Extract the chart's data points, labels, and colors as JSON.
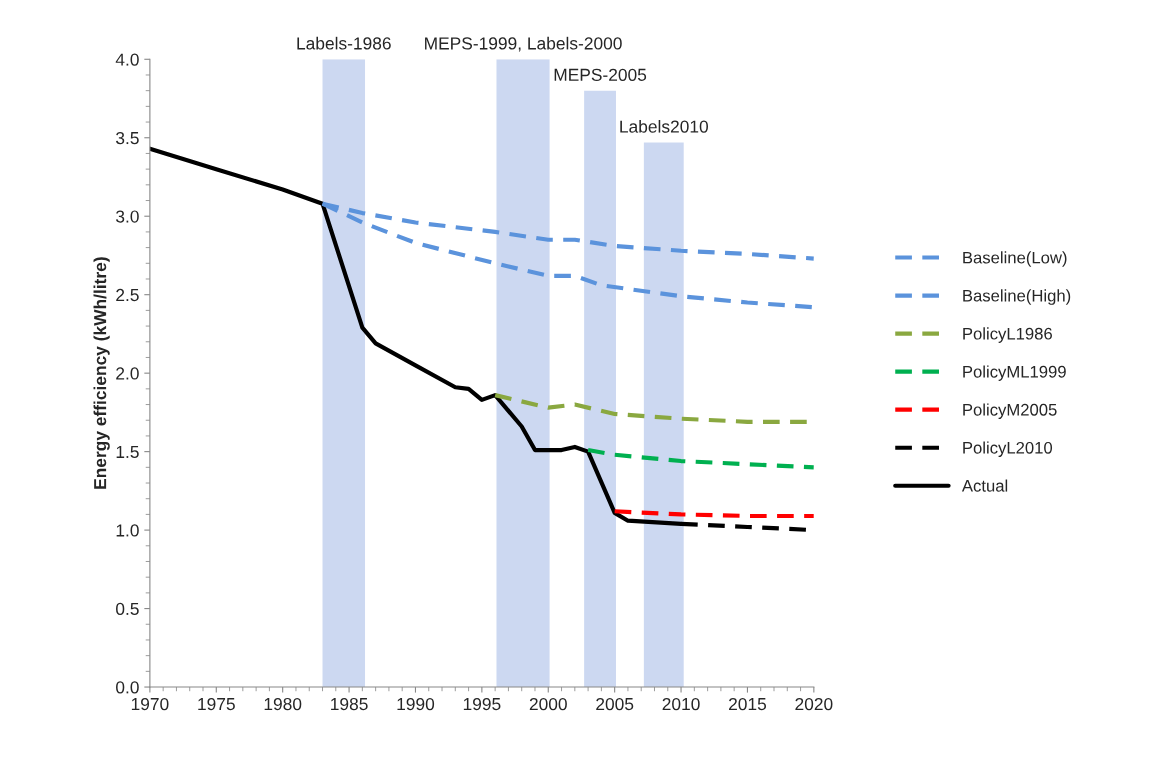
{
  "chart_data": {
    "type": "line",
    "ylabel": "Energy efficiency (kWh/litre)",
    "xlim": [
      1970,
      2020
    ],
    "xticks": [
      1970,
      1975,
      1980,
      1985,
      1990,
      1995,
      2000,
      2005,
      2010,
      2015,
      2020
    ],
    "ylim": [
      0,
      4
    ],
    "yticks": [
      {
        "value": 0,
        "label": "0.0"
      },
      {
        "value": 0.5,
        "label": "0.5"
      },
      {
        "value": 1,
        "label": "1.0"
      },
      {
        "value": 1.5,
        "label": "1.5"
      },
      {
        "value": 2,
        "label": "2.0"
      },
      {
        "value": 2.5,
        "label": "2.5"
      },
      {
        "value": 3,
        "label": "3.0"
      },
      {
        "value": 3.5,
        "label": "3.5"
      },
      {
        "value": 4,
        "label": "4.0"
      }
    ],
    "grid": false,
    "legend": "right",
    "marker": "none",
    "bands": [
      {
        "axis": "x",
        "from": 1983,
        "to": 1986.2,
        "label": "Labels-1986",
        "color": "#8ea9e0"
      },
      {
        "axis": "x",
        "from": 1996.1,
        "to": 2000.1,
        "label": "MEPS-1999, Labels-2000",
        "color": "#8ea9e0"
      },
      {
        "axis": "x",
        "from": 2002.7,
        "to": 2005.1,
        "label": "MEPS-2005",
        "color": "#8ea9e0"
      },
      {
        "axis": "x",
        "from": 2007.2,
        "to": 2010.2,
        "label": "Labels2010",
        "color": "#8ea9e0"
      }
    ],
    "series": [
      {
        "name": "Baseline(Low)",
        "color": "#5b93dc",
        "line_style": "dashed",
        "x": [
          1983,
          1986,
          1990,
          1996,
          2000,
          2002,
          2005,
          2010,
          2015,
          2020
        ],
        "values": [
          3.08,
          3.02,
          2.96,
          2.9,
          2.85,
          2.85,
          2.81,
          2.78,
          2.76,
          2.73
        ]
      },
      {
        "name": "Baseline(High)",
        "color": "#5b93dc",
        "line_style": "dashed",
        "x": [
          1983,
          1986,
          1990,
          1996,
          2000,
          2002,
          2004,
          2010,
          2015,
          2020
        ],
        "values": [
          3.08,
          2.96,
          2.83,
          2.7,
          2.62,
          2.62,
          2.56,
          2.49,
          2.45,
          2.42
        ]
      },
      {
        "name": "PolicyL1986",
        "color": "#8aa840",
        "line_style": "dashed",
        "x": [
          1996,
          2000,
          2002,
          2005,
          2010,
          2015,
          2020
        ],
        "values": [
          1.86,
          1.78,
          1.8,
          1.74,
          1.71,
          1.69,
          1.69
        ]
      },
      {
        "name": "PolicyML1999",
        "color": "#00b050",
        "line_style": "dashed",
        "x": [
          2003,
          2005,
          2010,
          2015,
          2020
        ],
        "values": [
          1.51,
          1.48,
          1.44,
          1.42,
          1.4
        ]
      },
      {
        "name": "PolicyM2005",
        "color": "#ff0000",
        "line_style": "dashed",
        "x": [
          2005,
          2010,
          2015,
          2020
        ],
        "values": [
          1.12,
          1.1,
          1.09,
          1.09
        ]
      },
      {
        "name": "PolicyL2010",
        "color": "#000000",
        "line_style": "dashed",
        "x": [
          2010,
          2015,
          2020
        ],
        "values": [
          1.04,
          1.02,
          1.0
        ]
      },
      {
        "name": "Actual",
        "color": "#000000",
        "line_style": "solid",
        "x": [
          1970,
          1975,
          1980,
          1983,
          1986,
          1987,
          1990,
          1993,
          1994,
          1995,
          1996,
          1998,
          1999,
          2001,
          2002,
          2003,
          2005,
          2006,
          2010
        ],
        "values": [
          3.43,
          3.3,
          3.17,
          3.08,
          2.29,
          2.19,
          2.05,
          1.91,
          1.9,
          1.83,
          1.86,
          1.66,
          1.51,
          1.51,
          1.53,
          1.5,
          1.11,
          1.06,
          1.04
        ]
      }
    ]
  }
}
